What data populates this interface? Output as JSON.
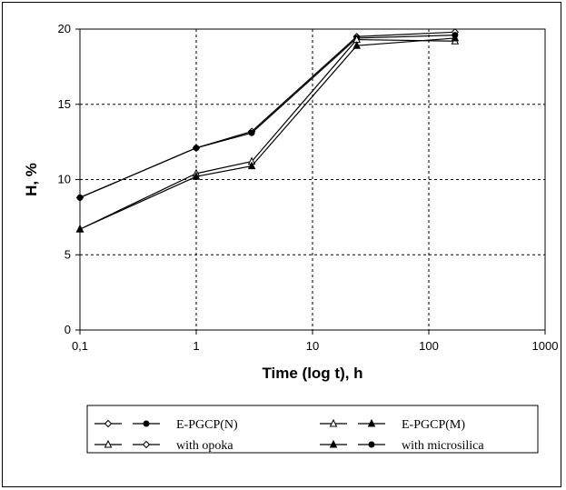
{
  "chart_data": {
    "type": "line",
    "xlabel": "Time (log t), h",
    "ylabel": "H, %",
    "x_scale": "log",
    "xlim": [
      0.1,
      1000
    ],
    "ylim": [
      0,
      20
    ],
    "x_ticks": [
      0.1,
      1,
      10,
      100,
      1000
    ],
    "x_tick_labels": [
      "0,1",
      "1",
      "10",
      "100",
      "1000"
    ],
    "y_ticks": [
      0,
      5,
      10,
      15,
      20
    ],
    "y_tick_labels": [
      "0",
      "5",
      "10",
      "15",
      "20"
    ],
    "grid": true,
    "legend_position": "bottom",
    "x": [
      0.1,
      1,
      3,
      24,
      168
    ],
    "series": [
      {
        "name": "E-PGCP(N)",
        "group": "E-PGCP(N)",
        "marker": "diamond-open",
        "values": [
          8.8,
          12.1,
          13.2,
          19.5,
          19.8
        ]
      },
      {
        "name": "E-PGCP(N)",
        "group": "E-PGCP(N)",
        "marker": "circle-filled",
        "values": [
          8.8,
          12.1,
          13.1,
          19.4,
          19.6
        ]
      },
      {
        "name": "E-PGCP(M)",
        "group": "E-PGCP(M)",
        "marker": "triangle-open",
        "values": [
          6.7,
          10.4,
          11.2,
          19.3,
          19.2
        ]
      },
      {
        "name": "E-PGCP(M)",
        "group": "E-PGCP(M)",
        "marker": "triangle-filled",
        "values": [
          6.7,
          10.2,
          10.9,
          18.9,
          19.4
        ]
      }
    ],
    "legend": [
      {
        "label": "E-PGCP(N)",
        "markers": [
          "diamond-open",
          "circle-filled"
        ]
      },
      {
        "label": "E-PGCP(M)",
        "markers": [
          "triangle-open",
          "triangle-filled"
        ]
      },
      {
        "label": "with opoka",
        "markers": [
          "triangle-open",
          "diamond-open"
        ]
      },
      {
        "label": "with microsilica",
        "markers": [
          "triangle-filled",
          "circle-filled"
        ]
      }
    ]
  }
}
